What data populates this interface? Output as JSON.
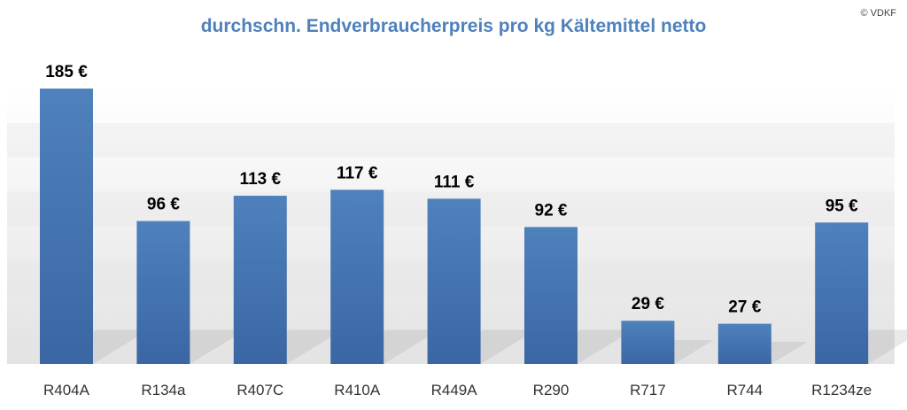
{
  "copyright": "© VDKF",
  "colors": {
    "title": "#4f81bd",
    "bar_top": "#4f81bd",
    "bar_bottom": "#3a67a3",
    "band_light": "#fafafa",
    "band_dark": "#e4e4e4"
  },
  "chart_data": {
    "type": "bar",
    "title": "durchschn. Endverbraucherpreis pro kg Kältemittel netto",
    "xlabel": "",
    "ylabel": "",
    "categories": [
      "R404A",
      "R134a",
      "R407C",
      "R410A",
      "R449A",
      "R290",
      "R717",
      "R744",
      "R1234ze"
    ],
    "values": [
      185,
      96,
      113,
      117,
      111,
      92,
      29,
      27,
      95
    ],
    "value_labels": [
      "185 €",
      "96 €",
      "113 €",
      "117 €",
      "111 €",
      "92 €",
      "29 €",
      "27 €",
      "95 €"
    ],
    "unit": "€",
    "ylim": [
      0,
      185
    ],
    "grid": false,
    "legend": "none"
  }
}
